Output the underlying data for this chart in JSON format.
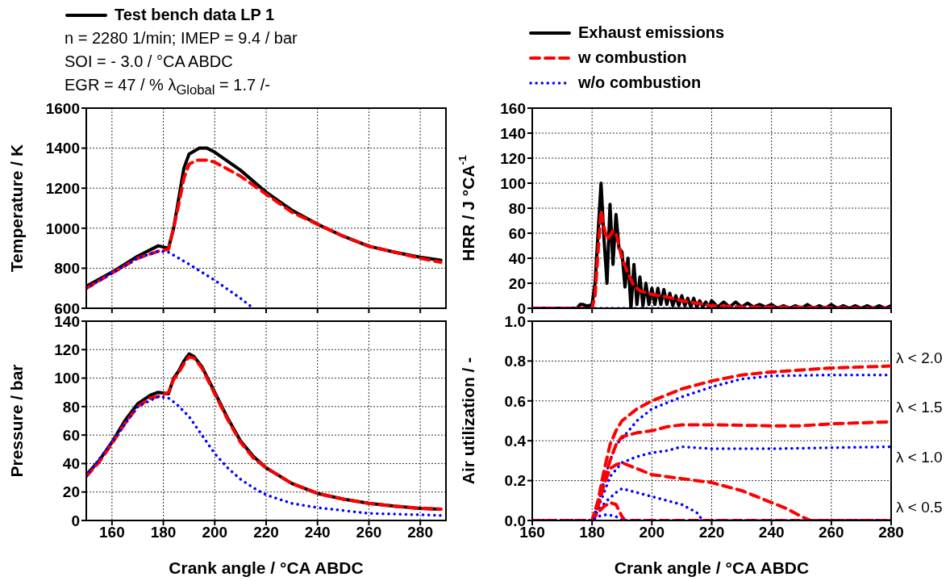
{
  "chart_data": [
    {
      "type": "line",
      "ylabel": "Temperature / K",
      "xlim": [
        150,
        290
      ],
      "xticks": [
        160,
        180,
        200,
        220,
        240,
        260,
        280
      ],
      "ylim": [
        600,
        1600
      ],
      "yticks": [
        600,
        800,
        1000,
        1200,
        1400,
        1600
      ],
      "grid": true,
      "legend": "top",
      "tick_labels": "y",
      "annotations": [
        "n = 2280 1/min; IMEP = 9.4 / bar",
        "SOI = - 3.0 / °CA ABDC",
        "EGR = 47 / % λ$_{Global}$ = 1.7 /-"
      ],
      "series": [
        {
          "name": "Test bench data LP 1",
          "color": "#000000",
          "line_style": "solid",
          "x": [
            150,
            160,
            170,
            178,
            182,
            184,
            186,
            188,
            190,
            194,
            197,
            200,
            210,
            220,
            230,
            240,
            250,
            260,
            270,
            280,
            288
          ],
          "values": [
            710,
            780,
            860,
            912,
            900,
            1000,
            1150,
            1300,
            1370,
            1400,
            1400,
            1380,
            1290,
            1180,
            1090,
            1020,
            960,
            910,
            880,
            855,
            840
          ]
        },
        {
          "color": "#ff0000",
          "line_style": "dashed",
          "x": [
            150,
            160,
            170,
            178,
            182,
            184,
            186,
            188,
            190,
            193,
            197,
            200,
            210,
            220,
            230,
            240,
            250,
            260,
            270,
            280,
            288
          ],
          "values": [
            700,
            775,
            850,
            885,
            895,
            1000,
            1120,
            1250,
            1320,
            1340,
            1340,
            1330,
            1260,
            1170,
            1080,
            1020,
            960,
            910,
            880,
            850,
            830
          ]
        },
        {
          "color": "#0000ff",
          "line_style": "dotted",
          "x": [
            150,
            160,
            170,
            178,
            182,
            190,
            200,
            210,
            215
          ],
          "values": [
            700,
            775,
            850,
            885,
            880,
            820,
            740,
            650,
            600
          ]
        }
      ]
    },
    {
      "type": "line",
      "ylabel": "HRR / J °CA$^{-1}$",
      "xlim": [
        160,
        280
      ],
      "xticks": [
        160,
        180,
        200,
        220,
        240,
        260,
        280
      ],
      "ylim": [
        0,
        160
      ],
      "yticks": [
        0,
        20,
        40,
        60,
        80,
        100,
        120,
        140,
        160
      ],
      "grid": true,
      "legend": "top",
      "tick_labels": "y",
      "series": [
        {
          "name": "Exhaust emissions",
          "color": "#000000",
          "line_style": "solid",
          "x": [
            160,
            170,
            175,
            176,
            177,
            178,
            179,
            180,
            181,
            182,
            183,
            184,
            185,
            186,
            187,
            188,
            189,
            190,
            191,
            192,
            193,
            194,
            195,
            196,
            197,
            198,
            199,
            200,
            201,
            202,
            203,
            204,
            205,
            206,
            207,
            208,
            209,
            210,
            211,
            212,
            213,
            214,
            215,
            216,
            217,
            218,
            219,
            220,
            222,
            224,
            226,
            228,
            230,
            232,
            234,
            236,
            238,
            240,
            242,
            244,
            246,
            248,
            250,
            252,
            254,
            256,
            258,
            260,
            262,
            264,
            266,
            268,
            270,
            272,
            274,
            276,
            278,
            280
          ],
          "values": [
            0,
            0,
            0,
            3,
            3,
            2,
            2,
            3,
            20,
            60,
            100,
            55,
            20,
            83,
            35,
            75,
            48,
            45,
            17,
            40,
            0,
            35,
            3,
            25,
            2,
            20,
            3,
            16,
            3,
            16,
            3,
            15,
            3,
            12,
            2,
            10,
            2,
            10,
            2,
            8,
            1,
            8,
            1,
            6,
            1,
            5,
            1,
            6,
            1,
            5,
            1,
            5,
            1,
            4,
            1,
            3,
            1,
            3,
            0,
            2,
            0,
            2,
            0,
            3,
            0,
            2,
            0,
            3,
            0,
            2,
            0,
            2,
            0,
            2,
            0,
            2,
            0,
            2
          ]
        },
        {
          "name": "w combustion",
          "color": "#ff0000",
          "line_style": "dashed",
          "x": [
            160,
            180,
            181,
            182,
            183,
            184,
            185,
            186,
            187,
            188,
            189,
            190,
            192,
            194,
            196,
            200,
            205,
            210,
            215,
            220,
            230,
            240,
            280
          ],
          "values": [
            0,
            0,
            10,
            45,
            78,
            65,
            55,
            58,
            62,
            60,
            50,
            40,
            28,
            18,
            14,
            11,
            9,
            6,
            4,
            2,
            1,
            1,
            0
          ]
        },
        {
          "name": "w/o combustion",
          "color": "#0000ff",
          "line_style": "dotted",
          "x": [
            160,
            280
          ],
          "values": [
            0,
            0
          ]
        }
      ]
    },
    {
      "type": "line",
      "ylabel": "Pressure / bar",
      "xlabel": "Crank angle / °CA ABDC",
      "xlim": [
        150,
        290
      ],
      "xticks": [
        160,
        180,
        200,
        220,
        240,
        260,
        280
      ],
      "ylim": [
        0,
        140
      ],
      "yticks": [
        0,
        20,
        40,
        60,
        80,
        100,
        120,
        140
      ],
      "grid": true,
      "series": [
        {
          "color": "#000000",
          "line_style": "solid",
          "x": [
            150,
            155,
            160,
            165,
            170,
            175,
            178,
            182,
            184,
            186,
            188,
            190,
            192,
            195,
            200,
            205,
            210,
            215,
            220,
            230,
            240,
            250,
            260,
            270,
            280,
            288
          ],
          "values": [
            32,
            42,
            55,
            70,
            82,
            88,
            90,
            89,
            100,
            105,
            112,
            117,
            115,
            108,
            90,
            72,
            56,
            45,
            37,
            26,
            19,
            15,
            12,
            10,
            8.5,
            8
          ]
        },
        {
          "color": "#ff0000",
          "line_style": "dashed",
          "x": [
            150,
            155,
            160,
            165,
            170,
            175,
            178,
            182,
            184,
            186,
            188,
            190,
            192,
            195,
            200,
            205,
            210,
            215,
            220,
            230,
            240,
            250,
            260,
            270,
            280,
            288
          ],
          "values": [
            31,
            41,
            54,
            68,
            80,
            86,
            87,
            90,
            99,
            104,
            110,
            115,
            114,
            107,
            89,
            71,
            55,
            44,
            37,
            26,
            19,
            15,
            12,
            10,
            8.5,
            8
          ]
        },
        {
          "color": "#0000ff",
          "line_style": "dotted",
          "x": [
            150,
            160,
            170,
            178,
            182,
            185,
            190,
            195,
            200,
            205,
            210,
            215,
            220,
            230,
            240,
            250,
            260,
            270,
            280,
            288
          ],
          "values": [
            31,
            55,
            80,
            87,
            86,
            82,
            73,
            60,
            47,
            37,
            29,
            23,
            18,
            12,
            9,
            7,
            5,
            4.5,
            4,
            3.5
          ]
        }
      ]
    },
    {
      "type": "line",
      "ylabel": "Air utilization / -",
      "xlabel": "Crank angle / °CA ABDC",
      "xlim": [
        160,
        280
      ],
      "xticks": [
        160,
        180,
        200,
        220,
        240,
        260,
        280
      ],
      "ylim": [
        0,
        1
      ],
      "yticks": [
        {
          "value": 0,
          "label": "0.0"
        },
        {
          "value": 0.2,
          "label": "0.2"
        },
        {
          "value": 0.4,
          "label": "0.4"
        },
        {
          "value": 0.6,
          "label": "0.6"
        },
        {
          "value": 0.8,
          "label": "0.8"
        },
        {
          "value": 1,
          "label": "1.0"
        }
      ],
      "grid": true,
      "annotations": [
        "λ < 2.0",
        "λ < 1.5",
        "λ < 1.0",
        "λ < 0.5"
      ],
      "series": [
        {
          "color": "#ff0000",
          "line_style": "dashed",
          "x": [
            160,
            180,
            182,
            184,
            186,
            188,
            190,
            195,
            200,
            210,
            220,
            230,
            240,
            250,
            260,
            270,
            280
          ],
          "values": [
            0,
            0,
            0.1,
            0.25,
            0.38,
            0.45,
            0.5,
            0.56,
            0.6,
            0.66,
            0.7,
            0.73,
            0.745,
            0.755,
            0.765,
            0.77,
            0.775
          ]
        },
        {
          "color": "#0000ff",
          "line_style": "dotted",
          "x": [
            160,
            180,
            182,
            184,
            186,
            188,
            190,
            195,
            200,
            210,
            220,
            230,
            240,
            260,
            280
          ],
          "values": [
            0,
            0,
            0.08,
            0.2,
            0.3,
            0.38,
            0.41,
            0.5,
            0.56,
            0.62,
            0.67,
            0.71,
            0.725,
            0.73,
            0.73
          ]
        },
        {
          "color": "#ff0000",
          "line_style": "dashed",
          "x": [
            160,
            180,
            182,
            184,
            186,
            188,
            190,
            195,
            200,
            205,
            210,
            220,
            240,
            250,
            260,
            280
          ],
          "values": [
            0,
            0,
            0.08,
            0.2,
            0.3,
            0.38,
            0.42,
            0.44,
            0.45,
            0.47,
            0.48,
            0.48,
            0.475,
            0.475,
            0.485,
            0.495
          ]
        },
        {
          "color": "#0000ff",
          "line_style": "dotted",
          "x": [
            160,
            180,
            183,
            186,
            190,
            195,
            200,
            205,
            210,
            220,
            240,
            260,
            280
          ],
          "values": [
            0,
            0,
            0.1,
            0.22,
            0.29,
            0.32,
            0.34,
            0.35,
            0.37,
            0.36,
            0.36,
            0.365,
            0.37
          ]
        },
        {
          "color": "#ff0000",
          "line_style": "dashed",
          "x": [
            160,
            180,
            182,
            184,
            186,
            188,
            190,
            195,
            200,
            210,
            220,
            230,
            240,
            245,
            250,
            253,
            280
          ],
          "values": [
            0,
            0,
            0.07,
            0.18,
            0.26,
            0.28,
            0.29,
            0.26,
            0.23,
            0.21,
            0.19,
            0.15,
            0.09,
            0.06,
            0.02,
            0,
            0
          ]
        },
        {
          "color": "#0000ff",
          "line_style": "dotted",
          "x": [
            160,
            180,
            182,
            185,
            188,
            190,
            195,
            200,
            210,
            215,
            217,
            280
          ],
          "values": [
            0,
            0,
            0.05,
            0.1,
            0.14,
            0.16,
            0.14,
            0.12,
            0.08,
            0.04,
            0,
            0
          ]
        },
        {
          "color": "#ff0000",
          "line_style": "dashed",
          "x": [
            160,
            180,
            182,
            184,
            186,
            188,
            190,
            191,
            280
          ],
          "values": [
            0,
            0,
            0.04,
            0.07,
            0.09,
            0.08,
            0.02,
            0,
            0
          ]
        },
        {
          "color": "#0000ff",
          "line_style": "dotted",
          "x": [
            160,
            180,
            182,
            185,
            188,
            190,
            280
          ],
          "values": [
            0,
            0,
            0.02,
            0.03,
            0.02,
            0,
            0
          ]
        }
      ]
    }
  ]
}
